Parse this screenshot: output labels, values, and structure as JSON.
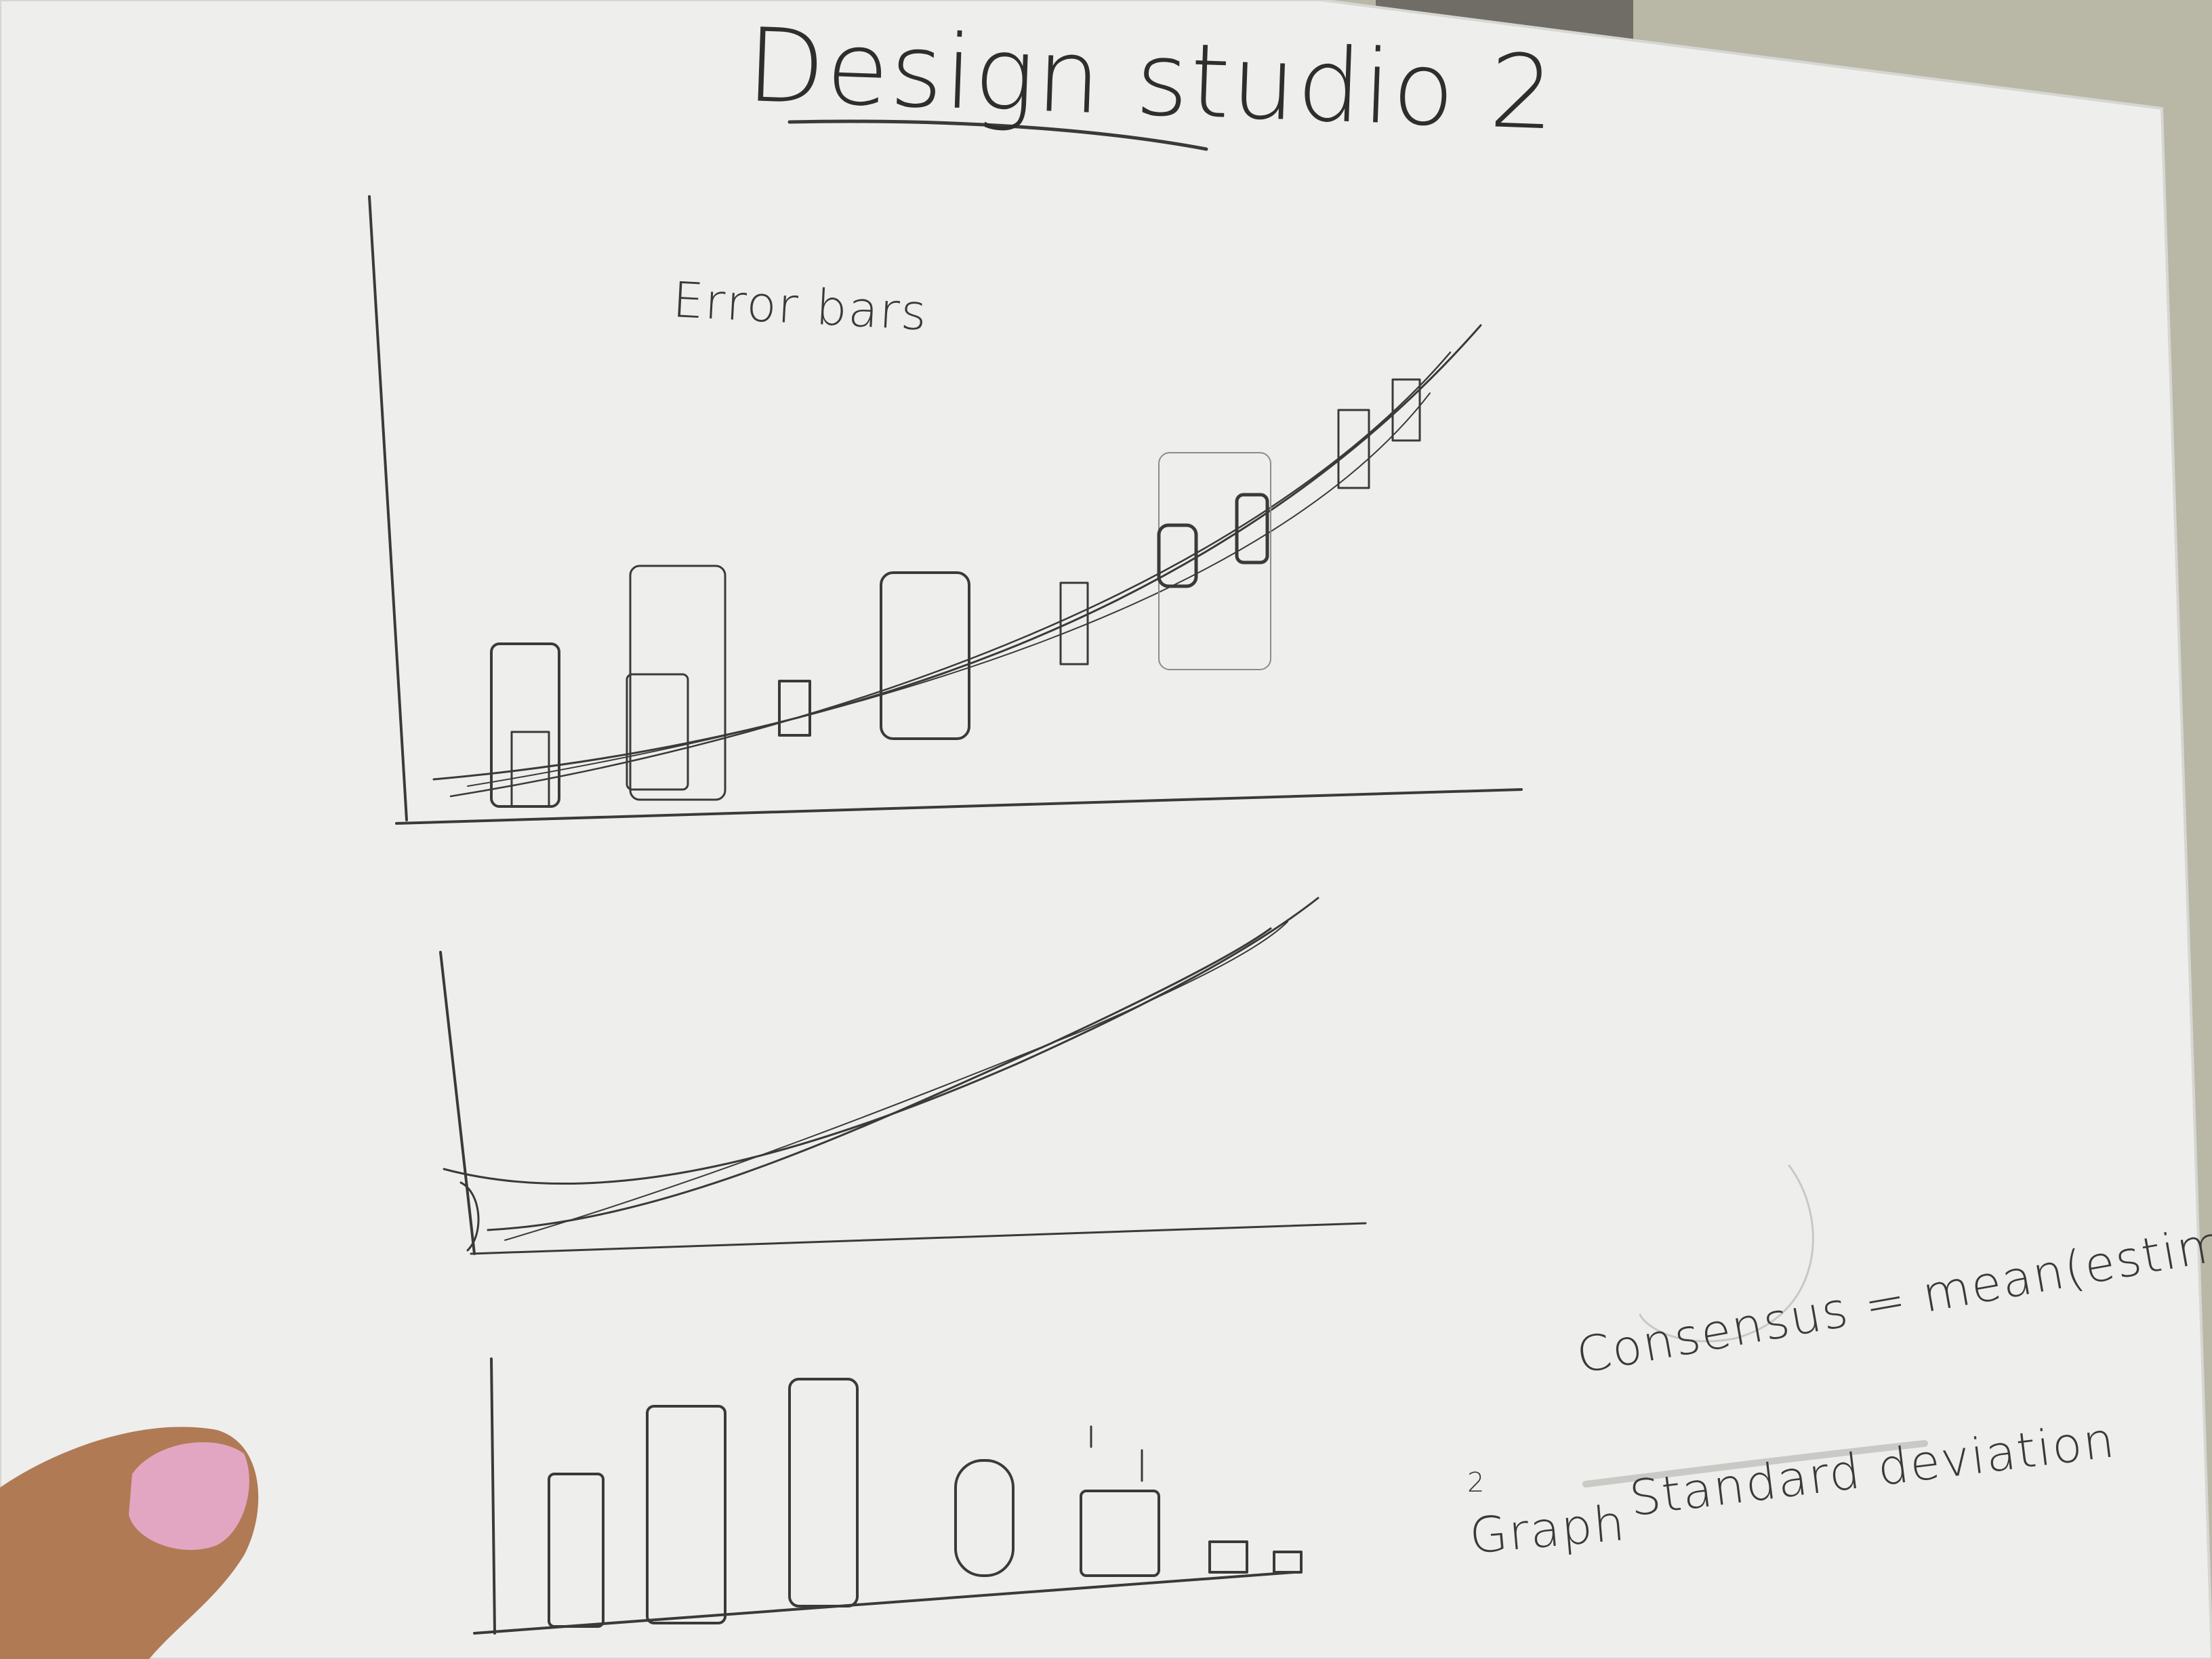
{
  "page": {
    "title": "Design studio 2",
    "error_bars_label": "Error bars",
    "consensus_note": "Consensus = mean(estimates)",
    "graph_marker": "2",
    "graph_note": "Graph",
    "std_note": "Standard deviation"
  },
  "colors": {
    "background_wall": "#b9b7a6",
    "paper": "#eeeeec",
    "pencil": "#3a3a3a",
    "skin": "#b07a55",
    "nail": "#e3a6c2"
  },
  "sketches": [
    {
      "name": "error-bars-sketch",
      "marks": [
        "axes",
        "exponential-trend-lines",
        "error-bar-rectangles"
      ]
    },
    {
      "name": "curve-sketch",
      "marks": [
        "axes",
        "diverging-curves"
      ]
    },
    {
      "name": "bar-chart-sketch",
      "marks": [
        "axes",
        "bars"
      ]
    }
  ]
}
